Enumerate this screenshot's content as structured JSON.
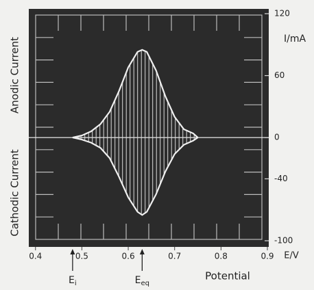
{
  "chart_data": {
    "type": "line",
    "y_label": "I/mA",
    "x_label": "E/V",
    "title": "Potential",
    "left_labels": [
      "Anodic Current",
      "Cathodic Current"
    ],
    "x": [
      0.48,
      0.5,
      0.52,
      0.54,
      0.56,
      0.58,
      0.6,
      0.62,
      0.63,
      0.64,
      0.66,
      0.68,
      0.7,
      0.72,
      0.74,
      0.75
    ],
    "series": [
      {
        "color": "#f0f0f0",
        "values": [
          0,
          2,
          6,
          13,
          25,
          45,
          68,
          83,
          85,
          83,
          65,
          40,
          20,
          8,
          4,
          0
        ]
      },
      {
        "color": "#f0f0f0",
        "values": [
          0,
          -2,
          -5,
          -10,
          -20,
          -38,
          -58,
          -72,
          -75,
          -72,
          -55,
          -33,
          -16,
          -7,
          -3,
          0
        ]
      }
    ],
    "xlim": [
      0.39,
      0.9
    ],
    "xticks": [
      0.4,
      0.5,
      0.6,
      0.7,
      0.8,
      0.9
    ],
    "ylim": [
      -100,
      120
    ],
    "yticks": [
      -100,
      -40,
      0,
      60,
      120
    ],
    "annotations": [
      {
        "label": "E",
        "subscript": "i",
        "x": 0.48
      },
      {
        "label": "E",
        "subscript": "eq",
        "x": 0.63
      }
    ]
  }
}
